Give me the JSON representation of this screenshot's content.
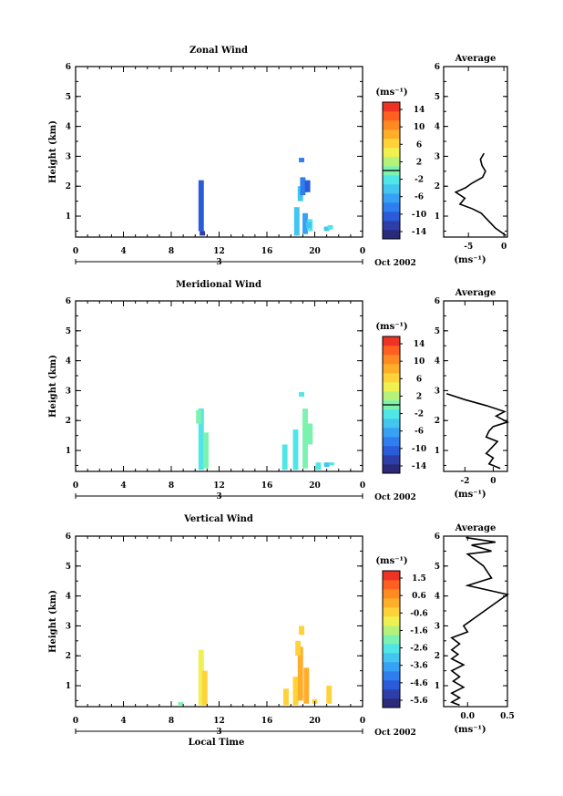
{
  "chart_data": [
    {
      "type": "heatmap",
      "title": "Zonal Wind",
      "ylabel": "Height (km)",
      "x_ticks": [
        "0",
        "4",
        "8",
        "12",
        "16",
        "20",
        "0"
      ],
      "y_ticks": [
        "1",
        "2",
        "3",
        "4",
        "5",
        "6"
      ],
      "xlim": [
        0,
        24
      ],
      "ylim": [
        0.3,
        6
      ],
      "date_label": "Oct 2002",
      "day_label": "3",
      "colorbar": {
        "unit": "(ms⁻¹)",
        "ticks": [
          "14",
          "10",
          "6",
          "2",
          "-2",
          "-6",
          "-10",
          "-14"
        ],
        "range": [
          -16,
          16
        ]
      },
      "cells": [
        {
          "x": 10.5,
          "y1": 0.5,
          "y2": 2.2,
          "value": -11
        },
        {
          "x": 10.6,
          "y1": 0.35,
          "y2": 0.5,
          "value": -13
        },
        {
          "x": 18.5,
          "y1": 0.35,
          "y2": 1.3,
          "value": -4
        },
        {
          "x": 19.2,
          "y1": 0.4,
          "y2": 1.1,
          "value": -6
        },
        {
          "x": 19.6,
          "y1": 0.5,
          "y2": 0.9,
          "value": -2
        },
        {
          "x": 18.8,
          "y1": 1.5,
          "y2": 2.0,
          "value": -4
        },
        {
          "x": 19.0,
          "y1": 1.7,
          "y2": 2.3,
          "value": -8
        },
        {
          "x": 19.4,
          "y1": 1.8,
          "y2": 2.2,
          "value": -10
        },
        {
          "x": 18.9,
          "y1": 2.8,
          "y2": 2.95,
          "value": -8
        },
        {
          "x": 19.5,
          "y1": 0.6,
          "y2": 0.8,
          "value": -4
        },
        {
          "x": 21.0,
          "y1": 0.5,
          "y2": 0.65,
          "value": -4
        },
        {
          "x": 21.3,
          "y1": 0.55,
          "y2": 0.7,
          "value": -2
        }
      ],
      "profile": {
        "title": "Average",
        "xlabel": "(ms⁻¹)",
        "x_ticks": [
          "-5",
          "0"
        ],
        "xlim": [
          -8.5,
          0.5
        ],
        "points": [
          [
            -2.8,
            3.1
          ],
          [
            -3.3,
            2.9
          ],
          [
            -3.1,
            2.7
          ],
          [
            -2.6,
            2.5
          ],
          [
            -3.0,
            2.3
          ],
          [
            -4.5,
            2.1
          ],
          [
            -5.4,
            1.95
          ],
          [
            -6.8,
            1.8
          ],
          [
            -5.5,
            1.6
          ],
          [
            -6.2,
            1.4
          ],
          [
            -4.5,
            1.25
          ],
          [
            -3.2,
            1.1
          ],
          [
            -2.4,
            0.9
          ],
          [
            -1.8,
            0.75
          ],
          [
            -1.2,
            0.6
          ],
          [
            -0.3,
            0.45
          ],
          [
            0.3,
            0.35
          ]
        ]
      }
    },
    {
      "type": "heatmap",
      "title": "Meridional Wind",
      "ylabel": "Height (km)",
      "x_ticks": [
        "0",
        "4",
        "8",
        "12",
        "16",
        "20",
        "0"
      ],
      "y_ticks": [
        "1",
        "2",
        "3",
        "4",
        "5",
        "6"
      ],
      "xlim": [
        0,
        24
      ],
      "ylim": [
        0.3,
        6
      ],
      "date_label": "Oct 2002",
      "day_label": "3",
      "colorbar": {
        "unit": "(ms⁻¹)",
        "ticks": [
          "14",
          "10",
          "6",
          "2",
          "-2",
          "-6",
          "-10",
          "-14"
        ],
        "range": [
          -16,
          16
        ]
      },
      "cells": [
        {
          "x": 10.5,
          "y1": 0.35,
          "y2": 2.4,
          "value": -3
        },
        {
          "x": 10.9,
          "y1": 0.4,
          "y2": 1.6,
          "value": -1
        },
        {
          "x": 10.3,
          "y1": 1.9,
          "y2": 2.35,
          "value": -1
        },
        {
          "x": 17.5,
          "y1": 0.35,
          "y2": 1.2,
          "value": -3
        },
        {
          "x": 18.4,
          "y1": 0.35,
          "y2": 1.7,
          "value": -2
        },
        {
          "x": 19.2,
          "y1": 0.4,
          "y2": 2.4,
          "value": 1
        },
        {
          "x": 19.6,
          "y1": 1.2,
          "y2": 1.9,
          "value": 0
        },
        {
          "x": 18.9,
          "y1": 2.8,
          "y2": 2.95,
          "value": -2
        },
        {
          "x": 20.3,
          "y1": 0.35,
          "y2": 0.6,
          "value": -3
        },
        {
          "x": 21.0,
          "y1": 0.45,
          "y2": 0.6,
          "value": -4
        },
        {
          "x": 21.4,
          "y1": 0.5,
          "y2": 0.6,
          "value": -3
        }
      ],
      "profile": {
        "title": "Average",
        "xlabel": "(ms⁻¹)",
        "x_ticks": [
          "-2",
          "0"
        ],
        "xlim": [
          -3.5,
          1
        ],
        "points": [
          [
            -3.3,
            2.9
          ],
          [
            -2.0,
            2.7
          ],
          [
            -0.5,
            2.5
          ],
          [
            0.8,
            2.3
          ],
          [
            0.2,
            2.15
          ],
          [
            1.0,
            1.95
          ],
          [
            0.0,
            1.8
          ],
          [
            -0.3,
            1.65
          ],
          [
            -0.5,
            1.45
          ],
          [
            0.3,
            1.3
          ],
          [
            -0.1,
            1.1
          ],
          [
            -0.5,
            0.9
          ],
          [
            0.0,
            0.75
          ],
          [
            -0.3,
            0.55
          ],
          [
            0.5,
            0.4
          ]
        ]
      }
    },
    {
      "type": "heatmap",
      "title": "Vertical Wind",
      "ylabel": "Height (km)",
      "xlabel": "Local Time",
      "x_ticks": [
        "0",
        "4",
        "8",
        "12",
        "16",
        "20",
        "0"
      ],
      "y_ticks": [
        "1",
        "2",
        "3",
        "4",
        "5",
        "6"
      ],
      "xlim": [
        0,
        24
      ],
      "ylim": [
        0.3,
        6
      ],
      "date_label": "Oct 2002",
      "day_label": "3",
      "colorbar": {
        "unit": "(ms⁻¹)",
        "ticks": [
          "1.5",
          "0.6",
          "-0.6",
          "-1.6",
          "-2.6",
          "-3.6",
          "-4.6",
          "-5.6"
        ],
        "range": [
          -6.0,
          2.0
        ]
      },
      "cells": [
        {
          "x": 8.8,
          "y1": 0.35,
          "y2": 0.45,
          "value": -2.0
        },
        {
          "x": 10.5,
          "y1": 0.35,
          "y2": 2.2,
          "value": -0.8
        },
        {
          "x": 10.8,
          "y1": 0.35,
          "y2": 1.5,
          "value": -0.6
        },
        {
          "x": 17.6,
          "y1": 0.35,
          "y2": 0.9,
          "value": -0.6
        },
        {
          "x": 18.4,
          "y1": 0.35,
          "y2": 1.3,
          "value": -0.4
        },
        {
          "x": 18.8,
          "y1": 0.5,
          "y2": 2.3,
          "value": 0.0
        },
        {
          "x": 19.3,
          "y1": 0.4,
          "y2": 1.6,
          "value": 0.2
        },
        {
          "x": 18.6,
          "y1": 2.0,
          "y2": 2.5,
          "value": -0.2
        },
        {
          "x": 18.9,
          "y1": 2.7,
          "y2": 3.0,
          "value": -0.6
        },
        {
          "x": 20.0,
          "y1": 0.4,
          "y2": 0.55,
          "value": -0.4
        },
        {
          "x": 21.2,
          "y1": 0.4,
          "y2": 1.0,
          "value": -0.4
        }
      ],
      "profile": {
        "title": "Average",
        "xlabel": "(ms⁻¹)",
        "x_ticks": [
          "0.0",
          "0.5"
        ],
        "xlim": [
          -0.3,
          0.5
        ],
        "points": [
          [
            -0.02,
            5.95
          ],
          [
            0.35,
            5.8
          ],
          [
            0.05,
            5.7
          ],
          [
            0.3,
            5.5
          ],
          [
            0.0,
            5.4
          ],
          [
            0.2,
            5.0
          ],
          [
            0.3,
            4.6
          ],
          [
            0.0,
            4.35
          ],
          [
            0.5,
            4.05
          ],
          [
            -0.05,
            3.0
          ],
          [
            0.0,
            2.8
          ],
          [
            -0.2,
            2.6
          ],
          [
            -0.1,
            2.4
          ],
          [
            -0.2,
            2.2
          ],
          [
            -0.12,
            2.05
          ],
          [
            -0.2,
            1.9
          ],
          [
            -0.05,
            1.7
          ],
          [
            -0.2,
            1.5
          ],
          [
            -0.1,
            1.3
          ],
          [
            -0.18,
            1.15
          ],
          [
            -0.05,
            0.95
          ],
          [
            -0.2,
            0.75
          ],
          [
            -0.1,
            0.6
          ],
          [
            -0.2,
            0.45
          ],
          [
            -0.1,
            0.35
          ]
        ]
      }
    }
  ]
}
